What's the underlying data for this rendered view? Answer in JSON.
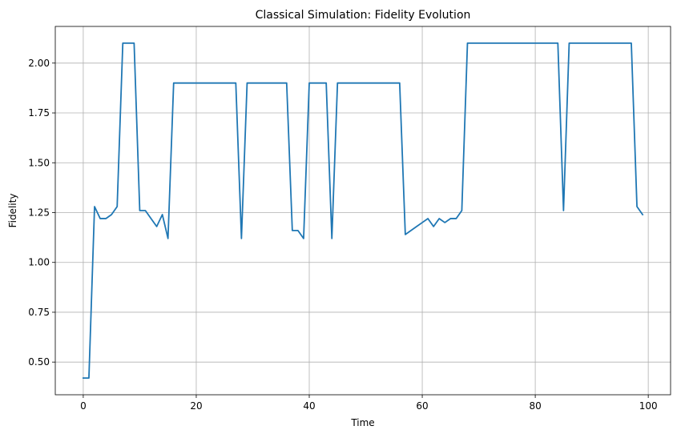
{
  "chart_data": {
    "type": "line",
    "title": "Classical Simulation: Fidelity Evolution",
    "xlabel": "Time",
    "ylabel": "Fidelity",
    "xlim": [
      -4.95,
      103.95
    ],
    "ylim": [
      0.336,
      2.184
    ],
    "xticks": [
      0,
      20,
      40,
      60,
      80,
      100
    ],
    "xtick_labels": [
      "0",
      "20",
      "40",
      "60",
      "80",
      "100"
    ],
    "yticks": [
      0.5,
      0.75,
      1.0,
      1.25,
      1.5,
      1.75,
      2.0
    ],
    "ytick_labels": [
      "0.50",
      "0.75",
      "1.00",
      "1.25",
      "1.50",
      "1.75",
      "2.00"
    ],
    "grid": true,
    "series": [
      {
        "color": "#1f77b4",
        "x": [
          0,
          1,
          2,
          3,
          4,
          5,
          6,
          7,
          8,
          9,
          10,
          11,
          12,
          13,
          14,
          15,
          16,
          17,
          18,
          19,
          20,
          21,
          22,
          23,
          24,
          25,
          26,
          27,
          28,
          29,
          30,
          31,
          32,
          33,
          34,
          35,
          36,
          37,
          38,
          39,
          40,
          41,
          42,
          43,
          44,
          45,
          46,
          47,
          48,
          49,
          50,
          51,
          52,
          53,
          54,
          55,
          56,
          57,
          58,
          59,
          60,
          61,
          62,
          63,
          64,
          65,
          66,
          67,
          68,
          69,
          70,
          71,
          72,
          73,
          74,
          75,
          76,
          77,
          78,
          79,
          80,
          81,
          82,
          83,
          84,
          85,
          86,
          87,
          88,
          89,
          90,
          91,
          92,
          93,
          94,
          95,
          96,
          97,
          98,
          99
        ],
        "y": [
          0.42,
          0.42,
          1.28,
          1.22,
          1.22,
          1.24,
          1.28,
          2.1,
          2.1,
          2.1,
          1.26,
          1.26,
          1.22,
          1.18,
          1.24,
          1.12,
          1.9,
          1.9,
          1.9,
          1.9,
          1.9,
          1.9,
          1.9,
          1.9,
          1.9,
          1.9,
          1.9,
          1.9,
          1.12,
          1.9,
          1.9,
          1.9,
          1.9,
          1.9,
          1.9,
          1.9,
          1.9,
          1.16,
          1.16,
          1.12,
          1.9,
          1.9,
          1.9,
          1.9,
          1.12,
          1.9,
          1.9,
          1.9,
          1.9,
          1.9,
          1.9,
          1.9,
          1.9,
          1.9,
          1.9,
          1.9,
          1.9,
          1.14,
          1.16,
          1.18,
          1.2,
          1.22,
          1.18,
          1.22,
          1.2,
          1.22,
          1.22,
          1.26,
          2.1,
          2.1,
          2.1,
          2.1,
          2.1,
          2.1,
          2.1,
          2.1,
          2.1,
          2.1,
          2.1,
          2.1,
          2.1,
          2.1,
          2.1,
          2.1,
          2.1,
          1.26,
          2.1,
          2.1,
          2.1,
          2.1,
          2.1,
          2.1,
          2.1,
          2.1,
          2.1,
          2.1,
          2.1,
          2.1,
          1.28,
          1.24
        ]
      }
    ]
  }
}
